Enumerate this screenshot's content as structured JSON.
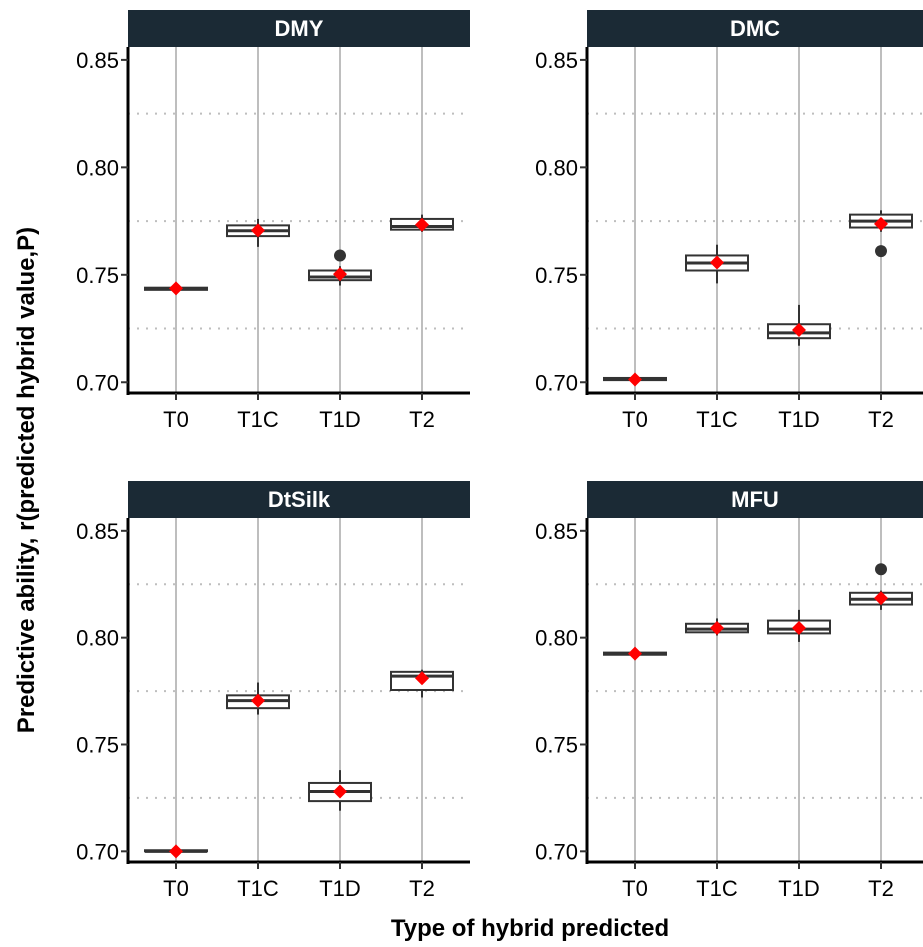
{
  "chart_data": {
    "type": "boxplot",
    "xlabel": "Type of hybrid predicted",
    "ylabel": "Predictive ability, r(predicted hybrid value,P)",
    "categories": [
      "T0",
      "T1C",
      "T1D",
      "T2"
    ],
    "ylim": [
      0.695,
      0.856
    ],
    "y_ticks": [
      0.7,
      0.75,
      0.8,
      0.85
    ],
    "y_tick_labels": [
      "0.70",
      "0.75",
      "0.80",
      "0.85"
    ],
    "y_minor_grid": [
      0.725,
      0.775,
      0.825
    ],
    "grid": true,
    "colors": {
      "strip": "#1b2a35",
      "box": "#333333",
      "mean": "#ff0000",
      "grid": "#bebebe",
      "outlier": "#333333"
    },
    "panels": [
      {
        "title": "DMY",
        "boxes": [
          {
            "category": "T0",
            "min": 0.743,
            "q1": 0.743,
            "median": 0.7435,
            "q3": 0.744,
            "max": 0.744,
            "mean": 0.7437,
            "outliers": []
          },
          {
            "category": "T1C",
            "min": 0.763,
            "q1": 0.768,
            "median": 0.7705,
            "q3": 0.773,
            "max": 0.776,
            "mean": 0.7707,
            "outliers": []
          },
          {
            "category": "T1D",
            "min": 0.745,
            "q1": 0.7475,
            "median": 0.749,
            "q3": 0.752,
            "max": 0.754,
            "mean": 0.7503,
            "outliers": [
              0.759
            ]
          },
          {
            "category": "T2",
            "min": 0.77,
            "q1": 0.771,
            "median": 0.7725,
            "q3": 0.776,
            "max": 0.778,
            "mean": 0.7733,
            "outliers": []
          }
        ]
      },
      {
        "title": "DMC",
        "boxes": [
          {
            "category": "T0",
            "min": 0.701,
            "q1": 0.701,
            "median": 0.7015,
            "q3": 0.702,
            "max": 0.702,
            "mean": 0.7013,
            "outliers": []
          },
          {
            "category": "T1C",
            "min": 0.746,
            "q1": 0.752,
            "median": 0.7555,
            "q3": 0.759,
            "max": 0.764,
            "mean": 0.7557,
            "outliers": []
          },
          {
            "category": "T1D",
            "min": 0.717,
            "q1": 0.7205,
            "median": 0.723,
            "q3": 0.727,
            "max": 0.736,
            "mean": 0.7243,
            "outliers": []
          },
          {
            "category": "T2",
            "min": 0.77,
            "q1": 0.772,
            "median": 0.775,
            "q3": 0.778,
            "max": 0.78,
            "mean": 0.7737,
            "outliers": [
              0.761
            ]
          }
        ]
      },
      {
        "title": "DtSilk",
        "boxes": [
          {
            "category": "T0",
            "min": 0.7,
            "q1": 0.7,
            "median": 0.7,
            "q3": 0.7005,
            "max": 0.7005,
            "mean": 0.7,
            "outliers": []
          },
          {
            "category": "T1C",
            "min": 0.764,
            "q1": 0.767,
            "median": 0.7705,
            "q3": 0.773,
            "max": 0.779,
            "mean": 0.7705,
            "outliers": []
          },
          {
            "category": "T1D",
            "min": 0.719,
            "q1": 0.7235,
            "median": 0.728,
            "q3": 0.732,
            "max": 0.738,
            "mean": 0.728,
            "outliers": []
          },
          {
            "category": "T2",
            "min": 0.772,
            "q1": 0.7755,
            "median": 0.782,
            "q3": 0.784,
            "max": 0.785,
            "mean": 0.781,
            "outliers": []
          }
        ]
      },
      {
        "title": "MFU",
        "boxes": [
          {
            "category": "T0",
            "min": 0.792,
            "q1": 0.792,
            "median": 0.7925,
            "q3": 0.793,
            "max": 0.793,
            "mean": 0.7925,
            "outliers": []
          },
          {
            "category": "T1C",
            "min": 0.801,
            "q1": 0.8025,
            "median": 0.804,
            "q3": 0.8065,
            "max": 0.809,
            "mean": 0.8045,
            "outliers": []
          },
          {
            "category": "T1D",
            "min": 0.798,
            "q1": 0.802,
            "median": 0.804,
            "q3": 0.808,
            "max": 0.813,
            "mean": 0.8045,
            "outliers": []
          },
          {
            "category": "T2",
            "min": 0.813,
            "q1": 0.8155,
            "median": 0.818,
            "q3": 0.821,
            "max": 0.822,
            "mean": 0.8185,
            "outliers": [
              0.832
            ]
          }
        ]
      }
    ]
  }
}
